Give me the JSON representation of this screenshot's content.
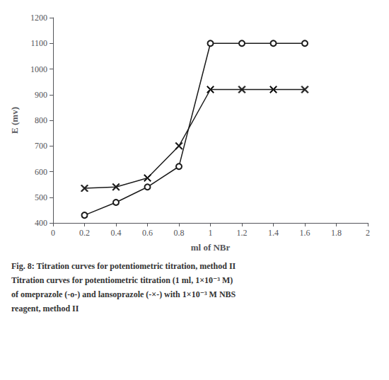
{
  "chart_data": {
    "type": "line",
    "x_label": "ml of NBr",
    "y_label": "E (mv)",
    "x": [
      0.2,
      0.4,
      0.6,
      0.8,
      1.0,
      1.2,
      1.4,
      1.6
    ],
    "series": [
      {
        "color": "#1a1a1a",
        "marker": "circle",
        "line_style": "solid",
        "values": [
          430,
          480,
          540,
          620,
          1100,
          1100,
          1100,
          1100
        ]
      },
      {
        "color": "#1a1a1a",
        "marker": "x",
        "line_style": "solid",
        "values": [
          535,
          540,
          575,
          700,
          920,
          920,
          920,
          920
        ]
      }
    ],
    "xlim": [
      0,
      2
    ],
    "ylim": [
      400,
      1200
    ],
    "xticks": [
      0,
      0.2,
      0.4,
      0.6,
      0.8,
      1,
      1.2,
      1.4,
      1.6,
      1.8,
      2
    ],
    "yticks": [
      400,
      500,
      600,
      700,
      800,
      900,
      1000,
      1100,
      1200
    ],
    "grid": false,
    "annotations": [
      "Fig. 8: Titration curves for potentiometric titration, method II",
      "Titration curves for potentiometric titration (1 ml, 1×10⁻³ M)",
      "of omeprazole (-o-) and lansoprazole (-×-) with 1×10⁻³ M NBS",
      "reagent, method II"
    ]
  }
}
